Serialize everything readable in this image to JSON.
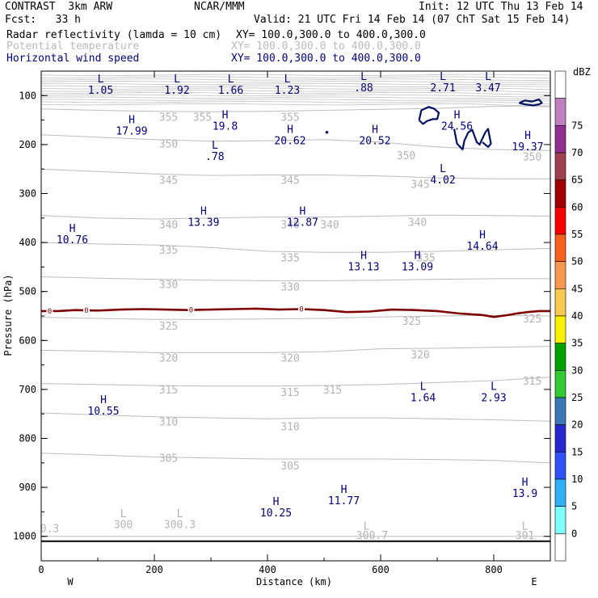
{
  "header": {
    "left1": "CONTRAST  3km ARW",
    "center1": "NCAR/MMM",
    "right1": "Init: 12 UTC Thu 13 Feb 14",
    "left2": "Fcst:   33 h",
    "right2": "Valid: 21 UTC Fri 14 Feb 14 (07 ChT Sat 15 Feb 14)"
  },
  "legend": [
    {
      "label": "Radar reflectivity (lamda = 10 cm)",
      "xy": "XY= 100.0,300.0 to 400.0,300.0",
      "color": "#000000"
    },
    {
      "label": "Potential temperature",
      "xy": "XY= 100.0,300.0 to 400.0,300.0",
      "color": "#b4b4b4"
    },
    {
      "label": "Horizontal wind speed",
      "xy": "XY= 100.0,300.0 to 400.0,300.0",
      "color": "#00007f"
    }
  ],
  "chart_data": {
    "type": "contour",
    "xlabel": "Distance (km)",
    "ylabel": "Pressure (hPa)",
    "xlim": [
      0,
      900
    ],
    "ylim": [
      1050,
      50
    ],
    "x_ticks": [
      0,
      200,
      400,
      600,
      800
    ],
    "y_ticks": [
      100,
      200,
      300,
      400,
      500,
      600,
      700,
      800,
      900,
      1000
    ],
    "x_end_labels": {
      "left": "W",
      "right": "E"
    },
    "colorbar": {
      "title": "dBZ",
      "levels": [
        "0",
        "5",
        "10",
        "15",
        "20",
        "25",
        "30",
        "35",
        "40",
        "45",
        "50",
        "55",
        "60",
        "65",
        "70",
        "75"
      ],
      "colors": [
        "#ffffff",
        "#7ffcfc",
        "#30b0f8",
        "#3050f8",
        "#2828cc",
        "#3c78b4",
        "#34c834",
        "#00a000",
        "#f8f000",
        "#f8c850",
        "#f89850",
        "#f86020",
        "#f80000",
        "#a00000",
        "#a04050",
        "#903090",
        "#c080c0",
        "#ffffff"
      ]
    },
    "theta_labels": [
      {
        "text": "355",
        "x": 225,
        "p": 143
      },
      {
        "text": "355",
        "x": 285,
        "p": 143
      },
      {
        "text": "355",
        "x": 440,
        "p": 143
      },
      {
        "text": "350",
        "x": 225,
        "p": 198
      },
      {
        "text": "350",
        "x": 645,
        "p": 222
      },
      {
        "text": "350",
        "x": 868,
        "p": 224
      },
      {
        "text": "345",
        "x": 225,
        "p": 272
      },
      {
        "text": "345",
        "x": 440,
        "p": 272
      },
      {
        "text": "345",
        "x": 670,
        "p": 280
      },
      {
        "text": "340",
        "x": 225,
        "p": 363
      },
      {
        "text": "340",
        "x": 440,
        "p": 363
      },
      {
        "text": "340",
        "x": 510,
        "p": 363
      },
      {
        "text": "340",
        "x": 665,
        "p": 358
      },
      {
        "text": "335",
        "x": 225,
        "p": 415
      },
      {
        "text": "335",
        "x": 440,
        "p": 430
      },
      {
        "text": "335",
        "x": 680,
        "p": 430
      },
      {
        "text": "330",
        "x": 225,
        "p": 485
      },
      {
        "text": "330",
        "x": 440,
        "p": 490
      },
      {
        "text": "325",
        "x": 225,
        "p": 570
      },
      {
        "text": "325",
        "x": 655,
        "p": 560
      },
      {
        "text": "325",
        "x": 868,
        "p": 555
      },
      {
        "text": "320",
        "x": 225,
        "p": 635
      },
      {
        "text": "320",
        "x": 440,
        "p": 635
      },
      {
        "text": "320",
        "x": 670,
        "p": 628
      },
      {
        "text": "315",
        "x": 225,
        "p": 700
      },
      {
        "text": "315",
        "x": 440,
        "p": 705
      },
      {
        "text": "315",
        "x": 515,
        "p": 700
      },
      {
        "text": "315",
        "x": 868,
        "p": 682
      },
      {
        "text": "310",
        "x": 225,
        "p": 765
      },
      {
        "text": "310",
        "x": 440,
        "p": 775
      },
      {
        "text": "305",
        "x": 225,
        "p": 840
      },
      {
        "text": "305",
        "x": 440,
        "p": 855
      }
    ],
    "theta_lines": [
      {
        "level": 355,
        "p": [
          127,
          130,
          132,
          133,
          132,
          130,
          128,
          126,
          122,
          121
        ]
      },
      {
        "level": 350,
        "p": [
          180,
          185,
          190,
          193,
          192,
          190,
          195,
          205,
          210,
          212
        ]
      },
      {
        "level": 345,
        "p": [
          250,
          255,
          260,
          263,
          262,
          262,
          264,
          268,
          270,
          270
        ]
      },
      {
        "level": 340,
        "p": [
          345,
          350,
          352,
          350,
          348,
          348,
          346,
          344,
          345,
          346
        ]
      },
      {
        "level": 335,
        "p": [
          400,
          403,
          405,
          410,
          418,
          420,
          420,
          418,
          415,
          412
        ]
      },
      {
        "level": 330,
        "p": [
          470,
          473,
          475,
          477,
          478,
          478,
          477,
          475,
          474,
          474
        ]
      },
      {
        "level": 325,
        "p": [
          553,
          555,
          557,
          557,
          556,
          555,
          552,
          550,
          549,
          550
        ]
      },
      {
        "level": 320,
        "p": [
          620,
          622,
          625,
          625,
          625,
          623,
          617,
          616,
          614,
          612
        ]
      },
      {
        "level": 315,
        "p": [
          688,
          690,
          692,
          693,
          693,
          692,
          690,
          686,
          682,
          675
        ]
      },
      {
        "level": 310,
        "p": [
          748,
          752,
          756,
          758,
          760,
          758,
          758,
          760,
          762,
          765
        ]
      },
      {
        "level": 305,
        "p": [
          830,
          834,
          838,
          840,
          842,
          842,
          842,
          843,
          845,
          850
        ]
      },
      {
        "level": 300,
        "p": [
          1000,
          1000,
          1000,
          1000,
          1000,
          1000,
          1000,
          1000,
          1000,
          1000
        ]
      }
    ],
    "theta_x": [
      0,
      100,
      200,
      300,
      400,
      500,
      600,
      700,
      800,
      900
    ],
    "theta_bottom_labels": [
      {
        "text": "L",
        "x": 145,
        "p": 953
      },
      {
        "text": "300",
        "x": 145,
        "p": 975
      },
      {
        "text": "L",
        "x": 245,
        "p": 953
      },
      {
        "text": "300.3",
        "x": 245,
        "p": 975
      },
      {
        "text": "L",
        "x": 575,
        "p": 978
      },
      {
        "text": "300.7",
        "x": 585,
        "p": 997
      },
      {
        "text": "L",
        "x": 855,
        "p": 978
      },
      {
        "text": "301",
        "x": 855,
        "p": 997
      },
      {
        "text": "0.3",
        "x": 15,
        "p": 983
      }
    ],
    "wind_markers": [
      {
        "type": "L",
        "value": "1.05",
        "x": 105,
        "p": 65
      },
      {
        "type": "L",
        "value": "1.92",
        "x": 240,
        "p": 65
      },
      {
        "type": "L",
        "value": "1.66",
        "x": 335,
        "p": 65
      },
      {
        "type": "L",
        "value": "1.23",
        "x": 435,
        "p": 65
      },
      {
        "type": "L",
        "value": ".88",
        "x": 570,
        "p": 60
      },
      {
        "type": "L",
        "value": "2.71",
        "x": 710,
        "p": 60
      },
      {
        "type": "L",
        "value": "3.47",
        "x": 790,
        "p": 60
      },
      {
        "type": "H",
        "value": "17.99",
        "x": 160,
        "p": 148
      },
      {
        "type": "H",
        "value": "19.8",
        "x": 325,
        "p": 138
      },
      {
        "type": "L",
        "value": ".78",
        "x": 307,
        "p": 200
      },
      {
        "type": "H",
        "value": "20.62",
        "x": 440,
        "p": 168
      },
      {
        "type": "H",
        "value": "20.52",
        "x": 590,
        "p": 168
      },
      {
        "type": "H",
        "value": "24.56",
        "x": 735,
        "p": 138
      },
      {
        "type": "H",
        "value": "19.37",
        "x": 860,
        "p": 180
      },
      {
        "type": "L",
        "value": "4.02",
        "x": 710,
        "p": 248
      },
      {
        "type": "H",
        "value": "13.39",
        "x": 287,
        "p": 335
      },
      {
        "type": "H",
        "value": "12.87",
        "x": 462,
        "p": 335
      },
      {
        "type": "H",
        "value": "10.76",
        "x": 55,
        "p": 370
      },
      {
        "type": "H",
        "value": "14.64",
        "x": 780,
        "p": 383
      },
      {
        "type": "H",
        "value": "13.13",
        "x": 570,
        "p": 425
      },
      {
        "type": "H",
        "value": "13.09",
        "x": 665,
        "p": 425
      },
      {
        "type": "L",
        "value": "1.64",
        "x": 675,
        "p": 693
      },
      {
        "type": "L",
        "value": "2.93",
        "x": 800,
        "p": 693
      },
      {
        "type": "H",
        "value": "10.55",
        "x": 110,
        "p": 720
      },
      {
        "type": "H",
        "value": "13.9",
        "x": 855,
        "p": 888
      },
      {
        "type": "H",
        "value": "11.77",
        "x": 535,
        "p": 903
      },
      {
        "type": "H",
        "value": "10.25",
        "x": 415,
        "p": 928
      }
    ],
    "freezing_line": {
      "label": "0",
      "x": [
        0,
        30,
        60,
        100,
        140,
        180,
        220,
        260,
        300,
        340,
        380,
        420,
        460,
        500,
        540,
        580,
        620,
        660,
        700,
        740,
        780,
        800,
        820,
        840,
        860,
        880,
        900
      ],
      "p": [
        540,
        540,
        538,
        539,
        537,
        536,
        537,
        538,
        537,
        536,
        535,
        537,
        536,
        538,
        542,
        541,
        537,
        538,
        540,
        545,
        548,
        552,
        549,
        545,
        542,
        540,
        540
      ],
      "label_x": [
        15,
        80,
        265,
        460
      ],
      "color": "#7f0000"
    },
    "reflectivity_contours": [
      {
        "x": [
          668,
          672,
          685,
          695,
          703,
          700,
          692,
          682,
          675,
          668
        ],
        "p": [
          150,
          130,
          123,
          127,
          135,
          148,
          148,
          152,
          158,
          150
        ]
      },
      {
        "x": [
          730,
          735,
          745,
          748,
          755,
          762,
          770,
          775,
          785,
          790,
          795,
          790,
          780
        ],
        "p": [
          168,
          198,
          210,
          192,
          175,
          170,
          195,
          200,
          175,
          168,
          198,
          205,
          195
        ]
      },
      {
        "x": [
          845,
          855,
          868,
          880,
          885,
          880,
          870,
          855,
          845
        ],
        "p": [
          115,
          110,
          112,
          108,
          115,
          118,
          120,
          118,
          115
        ]
      }
    ],
    "ground_p": 1010
  }
}
